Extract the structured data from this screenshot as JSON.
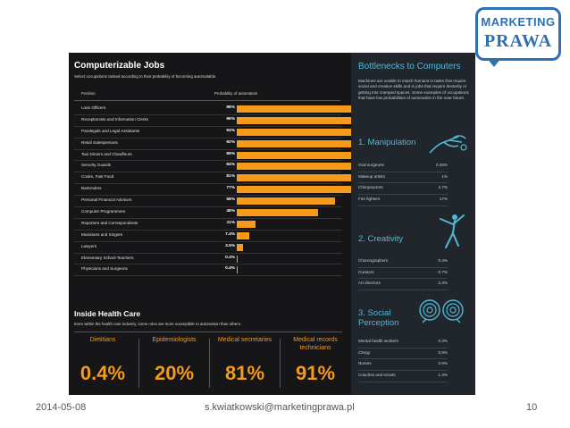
{
  "logo": {
    "line1": "MARKETING",
    "line2": "PRAWA"
  },
  "left": {
    "title": "Computerizable Jobs",
    "subtitle": "Select occupations ranked according to their probability of becoming automatable.",
    "col_position": "Position",
    "col_probability": "Probability of automation",
    "rows": [
      {
        "name": "Loan Officers",
        "pct": "98%",
        "value": 98
      },
      {
        "name": "Receptionists and Information Clerks",
        "pct": "96%",
        "value": 96
      },
      {
        "name": "Paralegals and Legal Assistants",
        "pct": "94%",
        "value": 94
      },
      {
        "name": "Retail Salespersons",
        "pct": "92%",
        "value": 92
      },
      {
        "name": "Taxi Drivers and Chauffeurs",
        "pct": "89%",
        "value": 89
      },
      {
        "name": "Security Guards",
        "pct": "84%",
        "value": 84
      },
      {
        "name": "Cooks, Fast Food",
        "pct": "81%",
        "value": 81
      },
      {
        "name": "Bartenders",
        "pct": "77%",
        "value": 77
      },
      {
        "name": "Personal Financial Advisors",
        "pct": "58%",
        "value": 58
      },
      {
        "name": "Computer Programmers",
        "pct": "48%",
        "value": 48
      },
      {
        "name": "Reporters and Correspondents",
        "pct": "11%",
        "value": 11
      },
      {
        "name": "Musicians and Singers",
        "pct": "7.4%",
        "value": 7.4
      },
      {
        "name": "Lawyers",
        "pct": "3.5%",
        "value": 3.5
      },
      {
        "name": "Elementary School Teachers",
        "pct": "0.4%",
        "value": 0.4
      },
      {
        "name": "Physicians and Surgeons",
        "pct": "0.4%",
        "value": 0.4
      }
    ],
    "health_title": "Inside Health Care",
    "health_subtitle": "Even within the health care industry, some roles are more susceptible to automation than others.",
    "health_stats": [
      {
        "label": "Dietitians",
        "value": "0.4%"
      },
      {
        "label": "Epidemiologists",
        "value": "20%"
      },
      {
        "label": "Medical secretaries",
        "value": "81%"
      },
      {
        "label": "Medical records technicians",
        "value": "91%"
      }
    ]
  },
  "right": {
    "title": "Bottlenecks to Computers",
    "description": "Machines are unable to match humans in tasks that require social and creative skills and in jobs that require dexterity or getting into cramped spaces. Some examples of occupations that have low probabilities of automation in the near future.",
    "sections": [
      {
        "heading": "1. Manipulation",
        "icon": "hand-icon",
        "items": [
          {
            "name": "Oral surgeons",
            "value": "0.36%"
          },
          {
            "name": "Makeup artists",
            "value": "1%"
          },
          {
            "name": "Chiropractors",
            "value": "2.7%"
          },
          {
            "name": "Fire fighters",
            "value": "17%"
          }
        ]
      },
      {
        "heading": "2. Creativity",
        "icon": "dancer-icon",
        "items": [
          {
            "name": "Choreographers",
            "value": "0.4%"
          },
          {
            "name": "Curators",
            "value": "0.7%"
          },
          {
            "name": "Art directors",
            "value": "2.3%"
          }
        ]
      },
      {
        "heading": "3. Social Perception",
        "icon": "heads-icon",
        "items": [
          {
            "name": "Mental health workers",
            "value": "0.3%"
          },
          {
            "name": "Clergy",
            "value": "0.8%"
          },
          {
            "name": "Nurses",
            "value": "0.9%"
          },
          {
            "name": "Coaches and scouts",
            "value": "1.3%"
          }
        ]
      }
    ]
  },
  "footer": {
    "date": "2014-05-08",
    "email": "s.kwiatkowski@marketingprawa.pl",
    "page": "10"
  },
  "chart_data": {
    "type": "bar",
    "title": "Computerizable Jobs",
    "categories": [
      "Loan Officers",
      "Receptionists and Information Clerks",
      "Paralegals and Legal Assistants",
      "Retail Salespersons",
      "Taxi Drivers and Chauffeurs",
      "Security Guards",
      "Cooks, Fast Food",
      "Bartenders",
      "Personal Financial Advisors",
      "Computer Programmers",
      "Reporters and Correspondents",
      "Musicians and Singers",
      "Lawyers",
      "Elementary School Teachers",
      "Physicians and Surgeons"
    ],
    "values": [
      98,
      96,
      94,
      92,
      89,
      84,
      81,
      77,
      58,
      48,
      11,
      7.4,
      3.5,
      0.4,
      0.4
    ],
    "ylabel": "Probability of automation",
    "ylim": [
      0,
      100
    ]
  },
  "colors": {
    "accent": "#f59a1b",
    "panel": "#161618",
    "right_panel": "#20262b",
    "blue": "#52b8d8",
    "logo": "#2f6fb0"
  }
}
